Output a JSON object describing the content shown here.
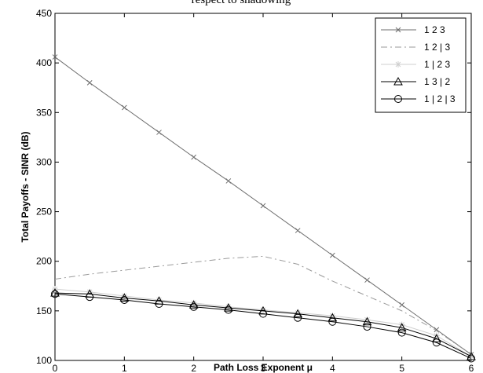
{
  "chart_data": {
    "type": "line",
    "title": "respect to shadowing",
    "xlabel": "Path Loss Exponent μ",
    "ylabel": "Total Payoffs - SINR (dB)",
    "xlim": [
      0,
      6
    ],
    "ylim": [
      100,
      450
    ],
    "xticks": [
      "0",
      "1",
      "2",
      "3",
      "4",
      "5",
      "6"
    ],
    "yticks": [
      "100",
      "150",
      "200",
      "250",
      "300",
      "350",
      "400",
      "450"
    ],
    "grid": false,
    "legend_position": "top-right",
    "x": [
      0,
      0.5,
      1,
      1.5,
      2,
      2.5,
      3,
      3.5,
      4,
      4.5,
      5,
      5.5,
      6
    ],
    "series": [
      {
        "name": "1 2 3",
        "marker": "x",
        "style": "solid",
        "color": "#6e6e6e",
        "values": [
          406,
          380,
          355,
          330,
          305,
          281,
          256,
          231,
          206,
          181,
          156,
          131,
          106
        ]
      },
      {
        "name": "1 2 | 3",
        "marker": "none",
        "style": "dashdot",
        "color": "#9a9a9a",
        "values": [
          182,
          187,
          191,
          195,
          199,
          203,
          205,
          197,
          180,
          165,
          150,
          130,
          106
        ]
      },
      {
        "name": "1 | 2 3",
        "marker": "star",
        "style": "solid",
        "color": "#cfcfcf",
        "values": [
          172,
          169,
          165,
          161,
          158,
          154,
          151,
          148,
          145,
          141,
          136,
          125,
          104
        ]
      },
      {
        "name": "1 3 | 2",
        "marker": "triangle",
        "style": "solid",
        "color": "#000000",
        "values": [
          168,
          167,
          163,
          160,
          156,
          153,
          150,
          147,
          143,
          139,
          133,
          122,
          104
        ]
      },
      {
        "name": "1 | 2 | 3",
        "marker": "circle",
        "style": "solid",
        "color": "#000000",
        "values": [
          167,
          164,
          161,
          157,
          154,
          151,
          147,
          143,
          139,
          134,
          128,
          118,
          102
        ]
      }
    ]
  }
}
